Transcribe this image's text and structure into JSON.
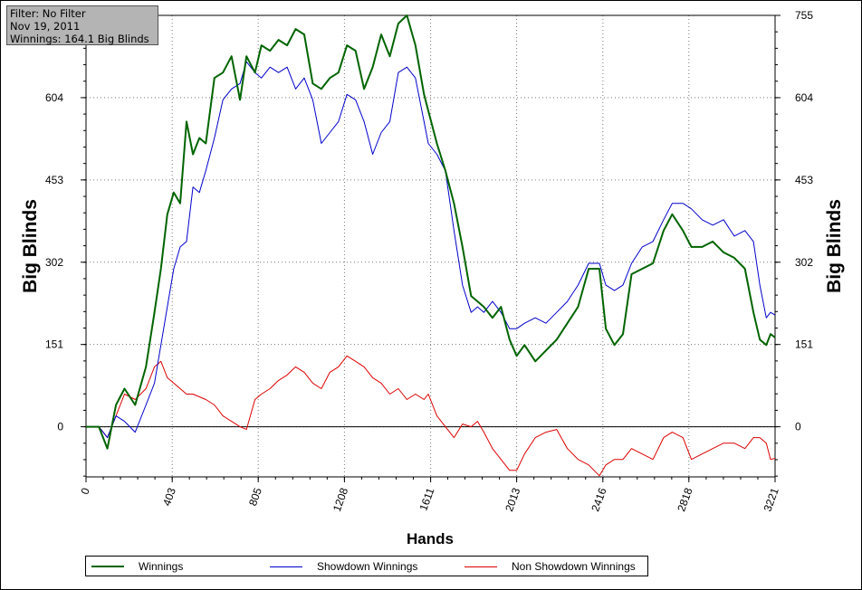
{
  "info": {
    "filter": "Filter: No Filter",
    "date": "Nov 19, 2011",
    "winnings": "Winnings: 164.1 Big Blinds"
  },
  "chart_data": {
    "type": "line",
    "xlabel": "Hands",
    "ylabel_left": "Big Blinds",
    "ylabel_right": "Big Blinds",
    "xlim": [
      0,
      3221
    ],
    "ylim": [
      -92,
      755
    ],
    "x_ticks": [
      "0",
      "403",
      "805",
      "1208",
      "1611",
      "2013",
      "2416",
      "2818",
      "3221"
    ],
    "y_ticks": [
      "0",
      "151",
      "302",
      "453",
      "604",
      "755"
    ],
    "grid": true,
    "legend_position": "bottom",
    "series": [
      {
        "name": "Winnings",
        "color": "#006400",
        "x": [
          0,
          60,
          100,
          140,
          180,
          230,
          280,
          320,
          350,
          380,
          410,
          440,
          470,
          500,
          530,
          560,
          600,
          640,
          680,
          720,
          750,
          790,
          820,
          860,
          900,
          940,
          980,
          1020,
          1060,
          1100,
          1140,
          1180,
          1220,
          1260,
          1300,
          1340,
          1380,
          1420,
          1460,
          1500,
          1540,
          1580,
          1600,
          1640,
          1680,
          1720,
          1760,
          1800,
          1830,
          1860,
          1900,
          1940,
          1980,
          2013,
          2050,
          2100,
          2150,
          2200,
          2250,
          2300,
          2350,
          2400,
          2430,
          2470,
          2510,
          2550,
          2600,
          2650,
          2700,
          2740,
          2790,
          2830,
          2880,
          2930,
          2980,
          3030,
          3080,
          3120,
          3150,
          3180,
          3200,
          3221
        ],
        "y": [
          0,
          0,
          -40,
          40,
          70,
          40,
          110,
          210,
          290,
          390,
          430,
          410,
          560,
          500,
          530,
          520,
          640,
          650,
          680,
          600,
          680,
          650,
          700,
          690,
          710,
          700,
          730,
          720,
          630,
          620,
          640,
          650,
          700,
          690,
          620,
          660,
          720,
          680,
          740,
          755,
          700,
          610,
          580,
          520,
          470,
          410,
          330,
          240,
          230,
          220,
          200,
          220,
          160,
          130,
          150,
          120,
          140,
          160,
          190,
          220,
          290,
          290,
          180,
          150,
          170,
          280,
          290,
          300,
          360,
          390,
          360,
          330,
          330,
          340,
          320,
          310,
          290,
          210,
          160,
          150,
          170,
          164
        ]
      },
      {
        "name": "Showdown Winnings",
        "color": "#0000cc",
        "x": [
          0,
          60,
          100,
          140,
          180,
          230,
          280,
          320,
          350,
          380,
          410,
          440,
          470,
          500,
          530,
          560,
          600,
          640,
          680,
          720,
          750,
          790,
          820,
          860,
          900,
          940,
          980,
          1020,
          1060,
          1100,
          1140,
          1180,
          1220,
          1260,
          1300,
          1340,
          1380,
          1420,
          1460,
          1500,
          1540,
          1580,
          1600,
          1640,
          1680,
          1720,
          1760,
          1800,
          1830,
          1860,
          1900,
          1940,
          1980,
          2013,
          2050,
          2100,
          2150,
          2200,
          2250,
          2300,
          2350,
          2400,
          2430,
          2470,
          2510,
          2550,
          2600,
          2650,
          2700,
          2740,
          2790,
          2830,
          2880,
          2930,
          2980,
          3030,
          3080,
          3120,
          3150,
          3180,
          3200,
          3221
        ],
        "y": [
          0,
          0,
          -20,
          20,
          10,
          -10,
          40,
          80,
          150,
          220,
          290,
          330,
          340,
          440,
          430,
          470,
          530,
          600,
          620,
          630,
          670,
          650,
          640,
          660,
          650,
          660,
          620,
          640,
          600,
          520,
          540,
          560,
          610,
          600,
          560,
          500,
          540,
          560,
          650,
          660,
          640,
          560,
          520,
          500,
          470,
          360,
          260,
          210,
          220,
          210,
          230,
          210,
          180,
          180,
          190,
          200,
          190,
          210,
          230,
          260,
          300,
          300,
          260,
          250,
          260,
          300,
          330,
          340,
          380,
          410,
          410,
          400,
          380,
          370,
          380,
          350,
          360,
          340,
          260,
          200,
          210,
          205
        ]
      },
      {
        "name": "Non Showdown Winnings",
        "color": "#dd0000",
        "x": [
          0,
          60,
          100,
          140,
          180,
          230,
          280,
          320,
          350,
          380,
          410,
          440,
          470,
          500,
          530,
          560,
          600,
          640,
          680,
          720,
          750,
          790,
          820,
          860,
          900,
          940,
          980,
          1020,
          1060,
          1100,
          1140,
          1180,
          1220,
          1260,
          1300,
          1340,
          1380,
          1420,
          1460,
          1500,
          1540,
          1580,
          1600,
          1640,
          1680,
          1720,
          1760,
          1800,
          1830,
          1860,
          1900,
          1940,
          1980,
          2013,
          2050,
          2100,
          2150,
          2200,
          2250,
          2300,
          2350,
          2400,
          2430,
          2470,
          2510,
          2550,
          2600,
          2650,
          2700,
          2740,
          2790,
          2830,
          2880,
          2930,
          2980,
          3030,
          3080,
          3120,
          3150,
          3180,
          3200,
          3221
        ],
        "y": [
          0,
          0,
          -20,
          20,
          60,
          50,
          70,
          110,
          120,
          90,
          80,
          70,
          60,
          60,
          55,
          50,
          40,
          20,
          10,
          0,
          -5,
          50,
          60,
          70,
          85,
          95,
          110,
          100,
          80,
          70,
          100,
          110,
          130,
          120,
          110,
          90,
          80,
          60,
          70,
          50,
          60,
          50,
          60,
          20,
          0,
          -20,
          5,
          0,
          10,
          -10,
          -40,
          -60,
          -80,
          -80,
          -50,
          -20,
          -10,
          -5,
          -40,
          -60,
          -70,
          -90,
          -70,
          -60,
          -60,
          -40,
          -50,
          -60,
          -20,
          -10,
          -20,
          -60,
          -50,
          -40,
          -30,
          -30,
          -40,
          -20,
          -20,
          -30,
          -60,
          -58
        ]
      }
    ]
  }
}
